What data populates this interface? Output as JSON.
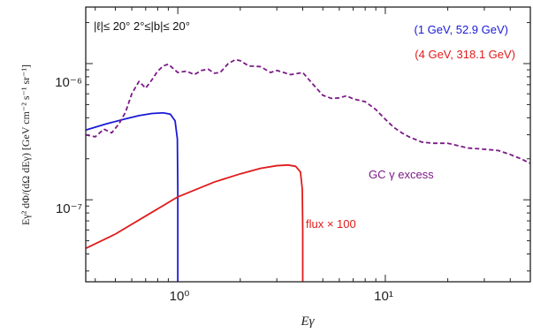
{
  "chart_data": {
    "type": "line",
    "title": "",
    "region_label": "|ℓ|≤ 20°  2°≤|b|≤ 20°",
    "xlabel": "Eγ",
    "ylabel": "Eγ² dΦ/(dΩ dEγ) [GeV cm⁻² s⁻¹ sr⁻¹]",
    "x_scale": "log",
    "y_scale": "log",
    "xlim": [
      0.36,
      50
    ],
    "ylim": [
      2.5e-08,
      2.6e-06
    ],
    "x_tick_labels": [
      "10⁰",
      "10¹"
    ],
    "y_tick_labels": [
      "10⁻⁷",
      "10⁻⁶"
    ],
    "legend": [
      {
        "text": "(1 GeV, 52.9 GeV)",
        "color": "#1a1ad8"
      },
      {
        "text": "(4 GeV, 318.1 GeV)",
        "color": "#e01b1b"
      }
    ],
    "annotations": [
      {
        "text": "GC γ excess",
        "color": "#7a1a86"
      },
      {
        "text": "flux × 100",
        "color": "#e01b1b"
      }
    ],
    "series": [
      {
        "name": "(1 GeV, 52.9 GeV)",
        "color": "#1a1ad8",
        "style": "solid",
        "x": [
          0.36,
          0.45,
          0.55,
          0.65,
          0.75,
          0.85,
          0.92,
          0.97,
          0.995,
          1.0,
          1.0
        ],
        "y": [
          3.25e-07,
          3.6e-07,
          3.9e-07,
          4.15e-07,
          4.3e-07,
          4.35e-07,
          4.25e-07,
          3.8e-07,
          2.8e-07,
          1.2e-07,
          2.5e-08
        ]
      },
      {
        "name": "(4 GeV, 318.1 GeV)",
        "color": "#e01b1b",
        "style": "solid",
        "x": [
          0.36,
          0.5,
          0.7,
          1.0,
          1.5,
          2.0,
          2.5,
          3.0,
          3.4,
          3.7,
          3.9,
          3.98,
          4.0,
          4.0
        ],
        "y": [
          4.4e-08,
          5.6e-08,
          7.6e-08,
          1.05e-07,
          1.35e-07,
          1.55e-07,
          1.7e-07,
          1.78e-07,
          1.8e-07,
          1.76e-07,
          1.6e-07,
          1.2e-07,
          6e-08,
          2.5e-08
        ]
      },
      {
        "name": "GC γ excess",
        "color": "#7a1a86",
        "style": "dashed",
        "x": [
          0.36,
          0.4,
          0.44,
          0.48,
          0.52,
          0.56,
          0.6,
          0.65,
          0.7,
          0.75,
          0.8,
          0.85,
          0.9,
          0.95,
          1.0,
          1.1,
          1.2,
          1.3,
          1.4,
          1.5,
          1.6,
          1.75,
          1.9,
          2.0,
          2.2,
          2.5,
          2.8,
          3.0,
          3.5,
          4.0,
          4.5,
          5.0,
          5.5,
          6.0,
          6.5,
          7.0,
          8.0,
          9.0,
          10.0,
          11.0,
          12.0,
          13.0,
          15.0,
          17.0,
          20.0,
          25.0,
          30.0,
          35.0,
          40.0,
          45.0,
          50.0
        ],
        "y": [
          3e-07,
          2.9e-07,
          3.3e-07,
          3.1e-07,
          3.6e-07,
          4.4e-07,
          6e-07,
          7.4e-07,
          6.6e-07,
          7.6e-07,
          8.8e-07,
          9.6e-07,
          9.9e-07,
          9.2e-07,
          8.6e-07,
          8.8e-07,
          8.3e-07,
          8.9e-07,
          9.1e-07,
          8.5e-07,
          8.6e-07,
          1e-06,
          1.07e-06,
          1.05e-06,
          9.6e-07,
          9.5e-07,
          8.6e-07,
          8.9e-07,
          8.3e-07,
          8.6e-07,
          7e-07,
          5.85e-07,
          5.55e-07,
          5.6e-07,
          5.8e-07,
          5.5e-07,
          5.25e-07,
          4.6e-07,
          3.9e-07,
          3.4e-07,
          3.1e-07,
          2.9e-07,
          2.65e-07,
          2.6e-07,
          2.6e-07,
          2.4e-07,
          2.35e-07,
          2.3e-07,
          2.15e-07,
          2e-07,
          1.85e-07
        ]
      }
    ]
  }
}
